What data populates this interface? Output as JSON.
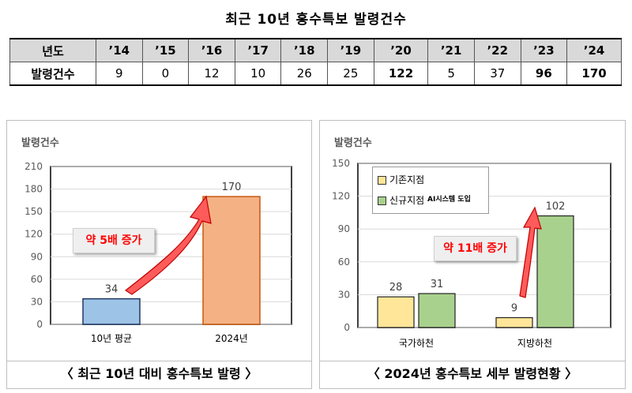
{
  "title": "최근 10년 홍수특보 발령건수",
  "table": {
    "header_label": "년도",
    "row_label": "발령건수",
    "years": [
      "’14",
      "’15",
      "’16",
      "’17",
      "’18",
      "’19",
      "’20",
      "’21",
      "’22",
      "’23",
      "’24"
    ],
    "counts": [
      "9",
      "0",
      "12",
      "10",
      "26",
      "25",
      "122",
      "5",
      "37",
      "96",
      "170"
    ],
    "bold": [
      false,
      false,
      false,
      false,
      false,
      false,
      true,
      false,
      false,
      true,
      true
    ]
  },
  "chart_data": [
    {
      "type": "bar",
      "title": "",
      "ylabel": "발령건수",
      "categories": [
        "10년 평균",
        "2024년"
      ],
      "values": [
        34,
        170
      ],
      "ylim": [
        0,
        210
      ],
      "yticks": [
        0,
        30,
        60,
        90,
        120,
        150,
        180,
        210
      ],
      "colors": [
        "#9dc3e6",
        "#f4b183"
      ],
      "annotation": "약 5배 증가",
      "caption": "〈 최근 10년 대비 홍수특보 발령 〉"
    },
    {
      "type": "bar",
      "title": "",
      "ylabel": "발령건수",
      "categories": [
        "국가하천",
        "지방하천"
      ],
      "series": [
        {
          "name": "기존지점",
          "values": [
            28,
            9
          ],
          "color": "#ffe699"
        },
        {
          "name": "신규지점",
          "values": [
            31,
            102
          ],
          "color": "#a9d18e"
        }
      ],
      "legend_suffix": "AI시스템 도입",
      "ylim": [
        0,
        150
      ],
      "yticks": [
        0,
        30,
        60,
        90,
        120,
        150
      ],
      "annotation": "약 11배 증가",
      "caption": "〈 2024년 홍수특보 세부 발령현황 〉"
    }
  ]
}
